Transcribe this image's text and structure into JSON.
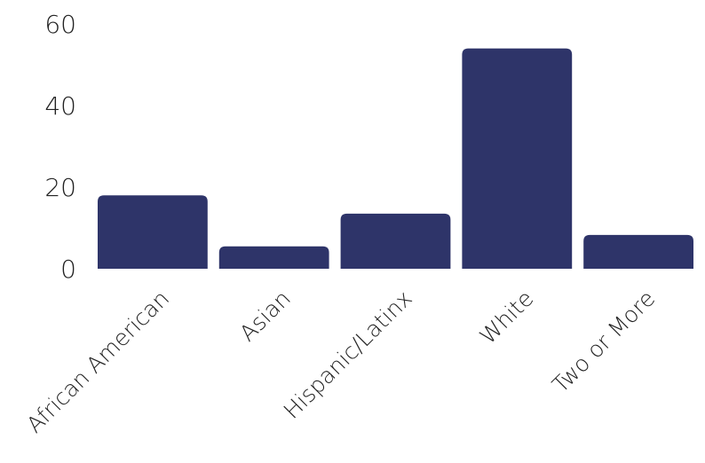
{
  "chart_data": {
    "type": "bar",
    "title": "",
    "xlabel": "",
    "ylabel": "",
    "categories": [
      "African American",
      "Asian",
      "Hispanic/Latinx",
      "White",
      "Two or More"
    ],
    "values": [
      18,
      5.5,
      13.5,
      54,
      8.3
    ],
    "ylim": [
      0,
      60
    ],
    "yticks": [
      0,
      20,
      40,
      60
    ],
    "grid": false,
    "legend": "none",
    "bar_color": "#2e3469"
  }
}
